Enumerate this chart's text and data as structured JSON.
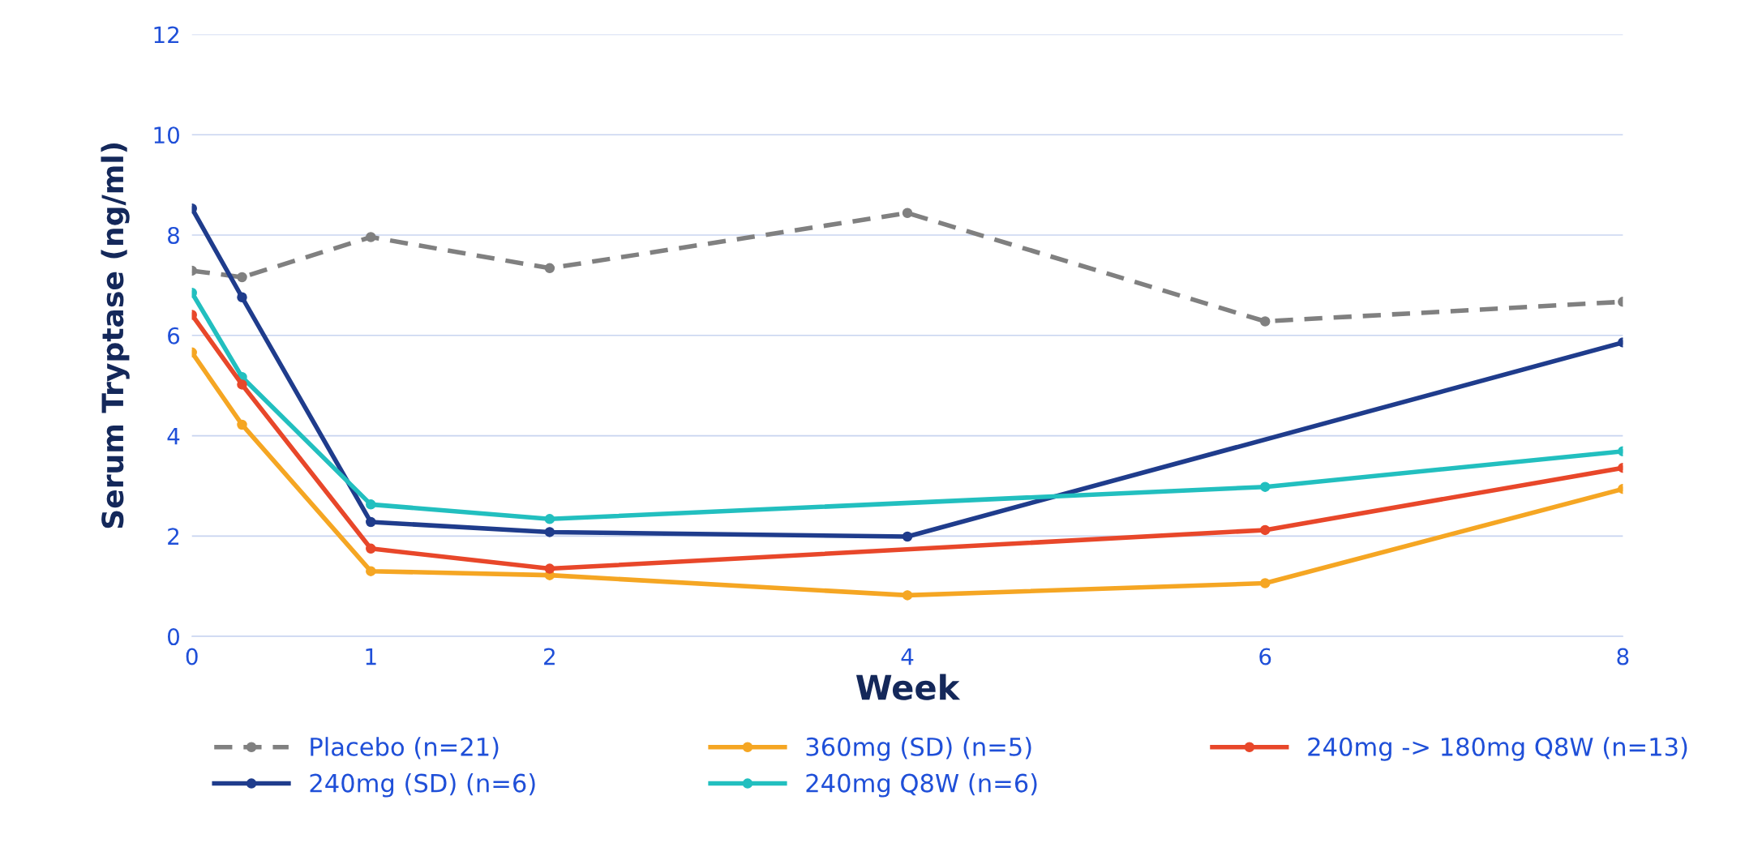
{
  "chart_data": {
    "type": "line",
    "xlabel": "Week",
    "ylabel": "Serum Tryptase (ng/ml)",
    "xlim": [
      0,
      8
    ],
    "xticks": [
      0,
      1,
      2,
      4,
      6,
      8
    ],
    "ylim": [
      0,
      12
    ],
    "yticks": [
      0,
      2,
      4,
      6,
      8,
      10,
      12
    ],
    "grid": "y",
    "legend": "bottom",
    "marker": "circle",
    "series": [
      {
        "name": "Placebo (n=21)",
        "color": "#808080",
        "line_style": "dashed",
        "x": [
          0,
          0.28,
          1,
          2,
          4,
          6,
          8
        ],
        "values": [
          7.29,
          7.16,
          7.96,
          7.34,
          8.44,
          6.28,
          6.67
        ]
      },
      {
        "name": "240mg (SD) (n=6)",
        "color": "#1f3c8c",
        "x": [
          0,
          0.28,
          1,
          2,
          4,
          8
        ],
        "values": [
          8.53,
          6.76,
          2.28,
          2.08,
          1.99,
          5.86
        ]
      },
      {
        "name": "360mg (SD) (n=5)",
        "color": "#f5a623",
        "x": [
          0,
          0.28,
          1,
          2,
          4,
          6,
          8
        ],
        "values": [
          5.66,
          4.22,
          1.3,
          1.22,
          0.82,
          1.06,
          2.94
        ]
      },
      {
        "name": "240mg Q8W (n=6)",
        "color": "#22bfbf",
        "x": [
          0,
          0.28,
          1,
          2,
          6,
          8
        ],
        "values": [
          6.85,
          5.17,
          2.63,
          2.34,
          2.98,
          3.69
        ]
      },
      {
        "name": "240mg -> 180mg Q8W (n=13)",
        "color": "#e8472a",
        "x": [
          0,
          0.28,
          1,
          2,
          6,
          8
        ],
        "values": [
          6.41,
          5.02,
          1.75,
          1.35,
          2.12,
          3.36
        ]
      }
    ]
  }
}
